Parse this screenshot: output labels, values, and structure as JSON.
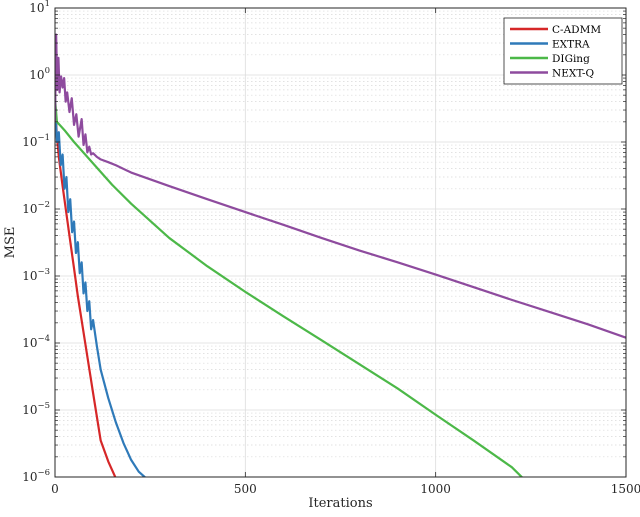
{
  "chart_data": {
    "type": "line",
    "title": "",
    "xlabel": "Iterations",
    "ylabel": "MSE",
    "xlim": [
      0,
      1500
    ],
    "ylim": [
      1e-06,
      10
    ],
    "yscale": "log",
    "grid": true,
    "minor_grid": true,
    "legend_position": "top-right",
    "xticks": [
      0,
      500,
      1000,
      1500
    ],
    "yticks": [
      {
        "value": 1e-06,
        "base": "10",
        "exp": "−6"
      },
      {
        "value": 1e-05,
        "base": "10",
        "exp": "−5"
      },
      {
        "value": 0.0001,
        "base": "10",
        "exp": "−4"
      },
      {
        "value": 0.001,
        "base": "10",
        "exp": "−3"
      },
      {
        "value": 0.01,
        "base": "10",
        "exp": "−2"
      },
      {
        "value": 0.1,
        "base": "10",
        "exp": "−1"
      },
      {
        "value": 1,
        "base": "10",
        "exp": "0"
      },
      {
        "value": 10,
        "base": "10",
        "exp": "1"
      }
    ],
    "series": [
      {
        "name": "C-ADMM",
        "color": "#d62728",
        "x": [
          0,
          5,
          10,
          20,
          30,
          40,
          50,
          60,
          80,
          100,
          120,
          140,
          160
        ],
        "y": [
          0.4,
          0.12,
          0.06,
          0.022,
          0.0085,
          0.0033,
          0.0013,
          0.0005,
          9.5e-05,
          1.8e-05,
          3.5e-06,
          1.7e-06,
          9.5e-07
        ]
      },
      {
        "name": "EXTRA",
        "color": "#2f7ab9",
        "x": [
          0,
          5,
          10,
          15,
          20,
          25,
          30,
          35,
          40,
          45,
          50,
          55,
          60,
          65,
          70,
          75,
          80,
          85,
          90,
          95,
          100,
          110,
          120,
          140,
          160,
          180,
          200,
          220,
          240
        ],
        "y": [
          0.45,
          0.1,
          0.14,
          0.045,
          0.065,
          0.02,
          0.03,
          0.009,
          0.014,
          0.0045,
          0.0065,
          0.0022,
          0.0032,
          0.0011,
          0.0016,
          0.00055,
          0.0008,
          0.0003,
          0.00042,
          0.00016,
          0.00022,
          9e-05,
          4e-05,
          1.5e-05,
          6.5e-06,
          3.2e-06,
          1.8e-06,
          1.2e-06,
          9.5e-07
        ]
      },
      {
        "name": "DIGing",
        "color": "#4cb848",
        "x": [
          0,
          5,
          25,
          50,
          100,
          150,
          200,
          300,
          400,
          500,
          600,
          700,
          800,
          900,
          1000,
          1100,
          1200,
          1230
        ],
        "y": [
          0.45,
          0.2,
          0.15,
          0.1,
          0.048,
          0.023,
          0.012,
          0.0037,
          0.0014,
          0.00058,
          0.00025,
          0.00011,
          4.8e-05,
          2.1e-05,
          8.5e-06,
          3.5e-06,
          1.4e-06,
          9.5e-07
        ]
      },
      {
        "name": "NEXT-Q",
        "color": "#8e4b9e",
        "x": [
          0,
          3,
          6,
          9,
          12,
          16,
          20,
          24,
          28,
          32,
          38,
          44,
          50,
          56,
          62,
          70,
          75,
          80,
          85,
          90,
          95,
          100,
          110,
          120,
          140,
          160,
          200,
          300,
          400,
          500,
          600,
          700,
          800,
          900,
          1000,
          1100,
          1200,
          1300,
          1400,
          1500
        ],
        "y": [
          0.2,
          4.0,
          0.6,
          1.8,
          0.55,
          0.95,
          0.65,
          0.9,
          0.4,
          0.55,
          0.28,
          0.45,
          0.18,
          0.26,
          0.12,
          0.22,
          0.09,
          0.13,
          0.07,
          0.085,
          0.065,
          0.068,
          0.06,
          0.055,
          0.05,
          0.045,
          0.035,
          0.022,
          0.014,
          0.009,
          0.0058,
          0.0037,
          0.0024,
          0.0016,
          0.00105,
          0.00068,
          0.00044,
          0.00029,
          0.00019,
          0.00012
        ]
      }
    ]
  }
}
